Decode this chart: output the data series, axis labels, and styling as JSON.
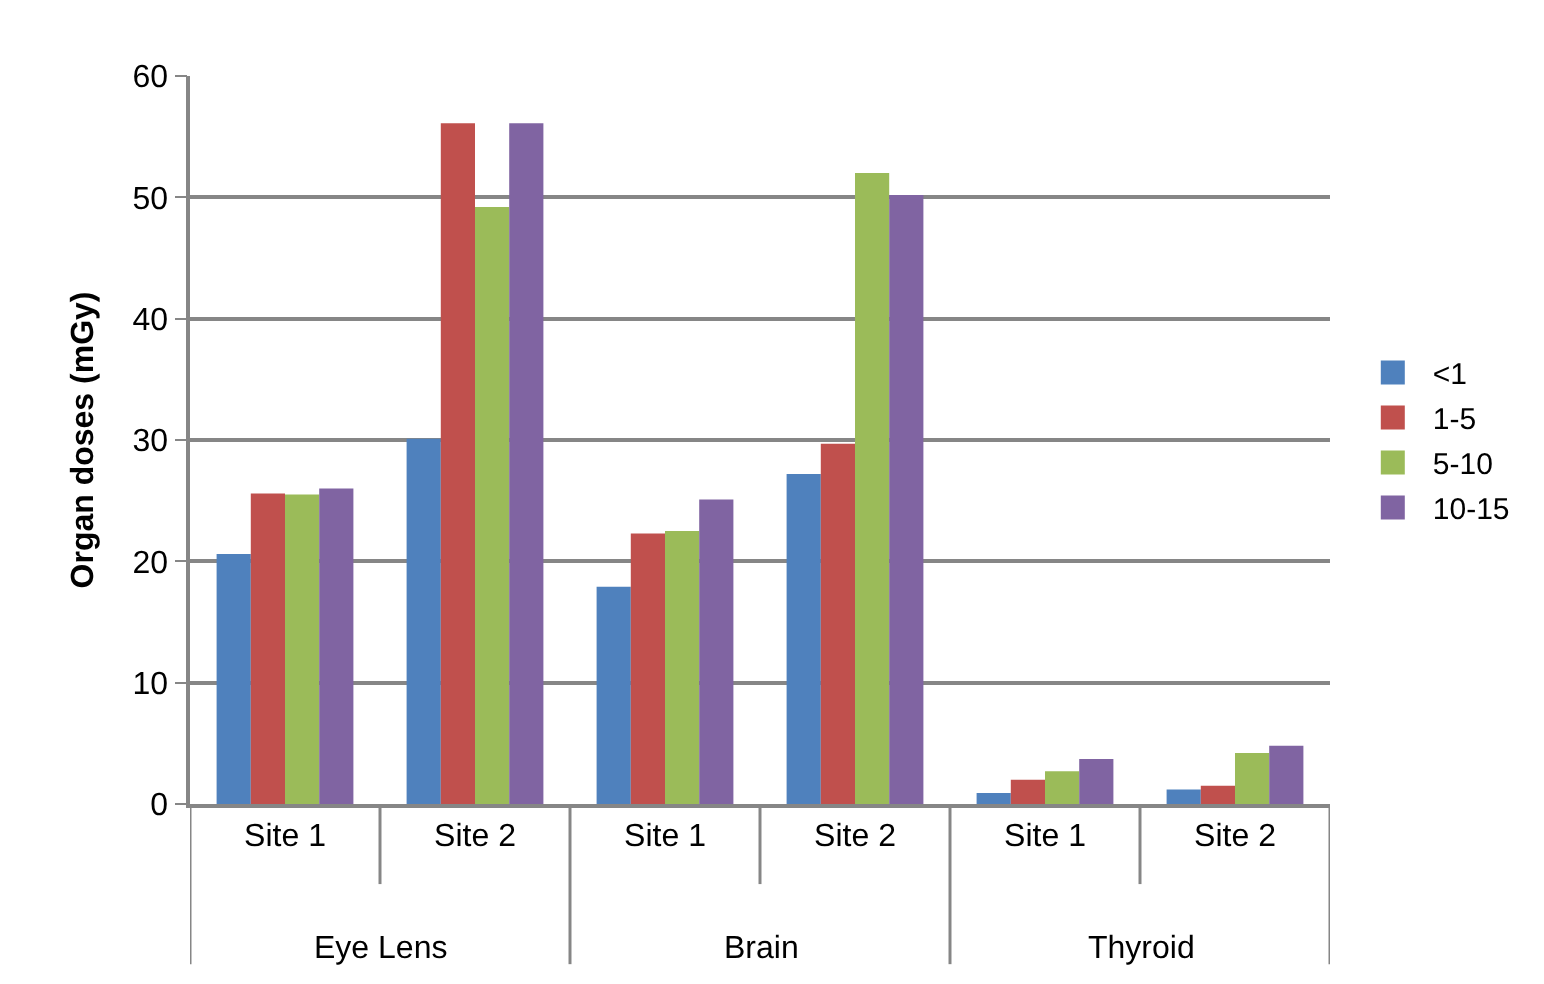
{
  "chart_data": {
    "type": "bar",
    "ylabel": "Organ doses (mGy)",
    "categories": [
      "Site 1",
      "Site 2",
      "Site 1",
      "Site 2",
      "Site 1",
      "Site 2"
    ],
    "annotations": [
      "Eye Lens",
      "Brain",
      "Thyroid"
    ],
    "series": [
      {
        "name": "<1",
        "color": "#4f81bd",
        "values": [
          20.6,
          30.1,
          17.9,
          27.2,
          0.9,
          1.2
        ]
      },
      {
        "name": "1-5",
        "color": "#c0504d",
        "values": [
          25.6,
          56.1,
          22.3,
          29.7,
          2.0,
          1.5
        ]
      },
      {
        "name": "5-10",
        "color": "#9bbb59",
        "values": [
          25.5,
          49.2,
          22.5,
          52.0,
          2.7,
          4.2
        ]
      },
      {
        "name": "10-15",
        "color": "#8064a2",
        "values": [
          26.0,
          56.1,
          25.1,
          50.2,
          3.7,
          4.8
        ]
      }
    ],
    "ylim": [
      0,
      60
    ],
    "yticks": [
      0,
      10,
      20,
      30,
      40,
      50,
      60
    ],
    "grid": "y",
    "legend": "right"
  }
}
